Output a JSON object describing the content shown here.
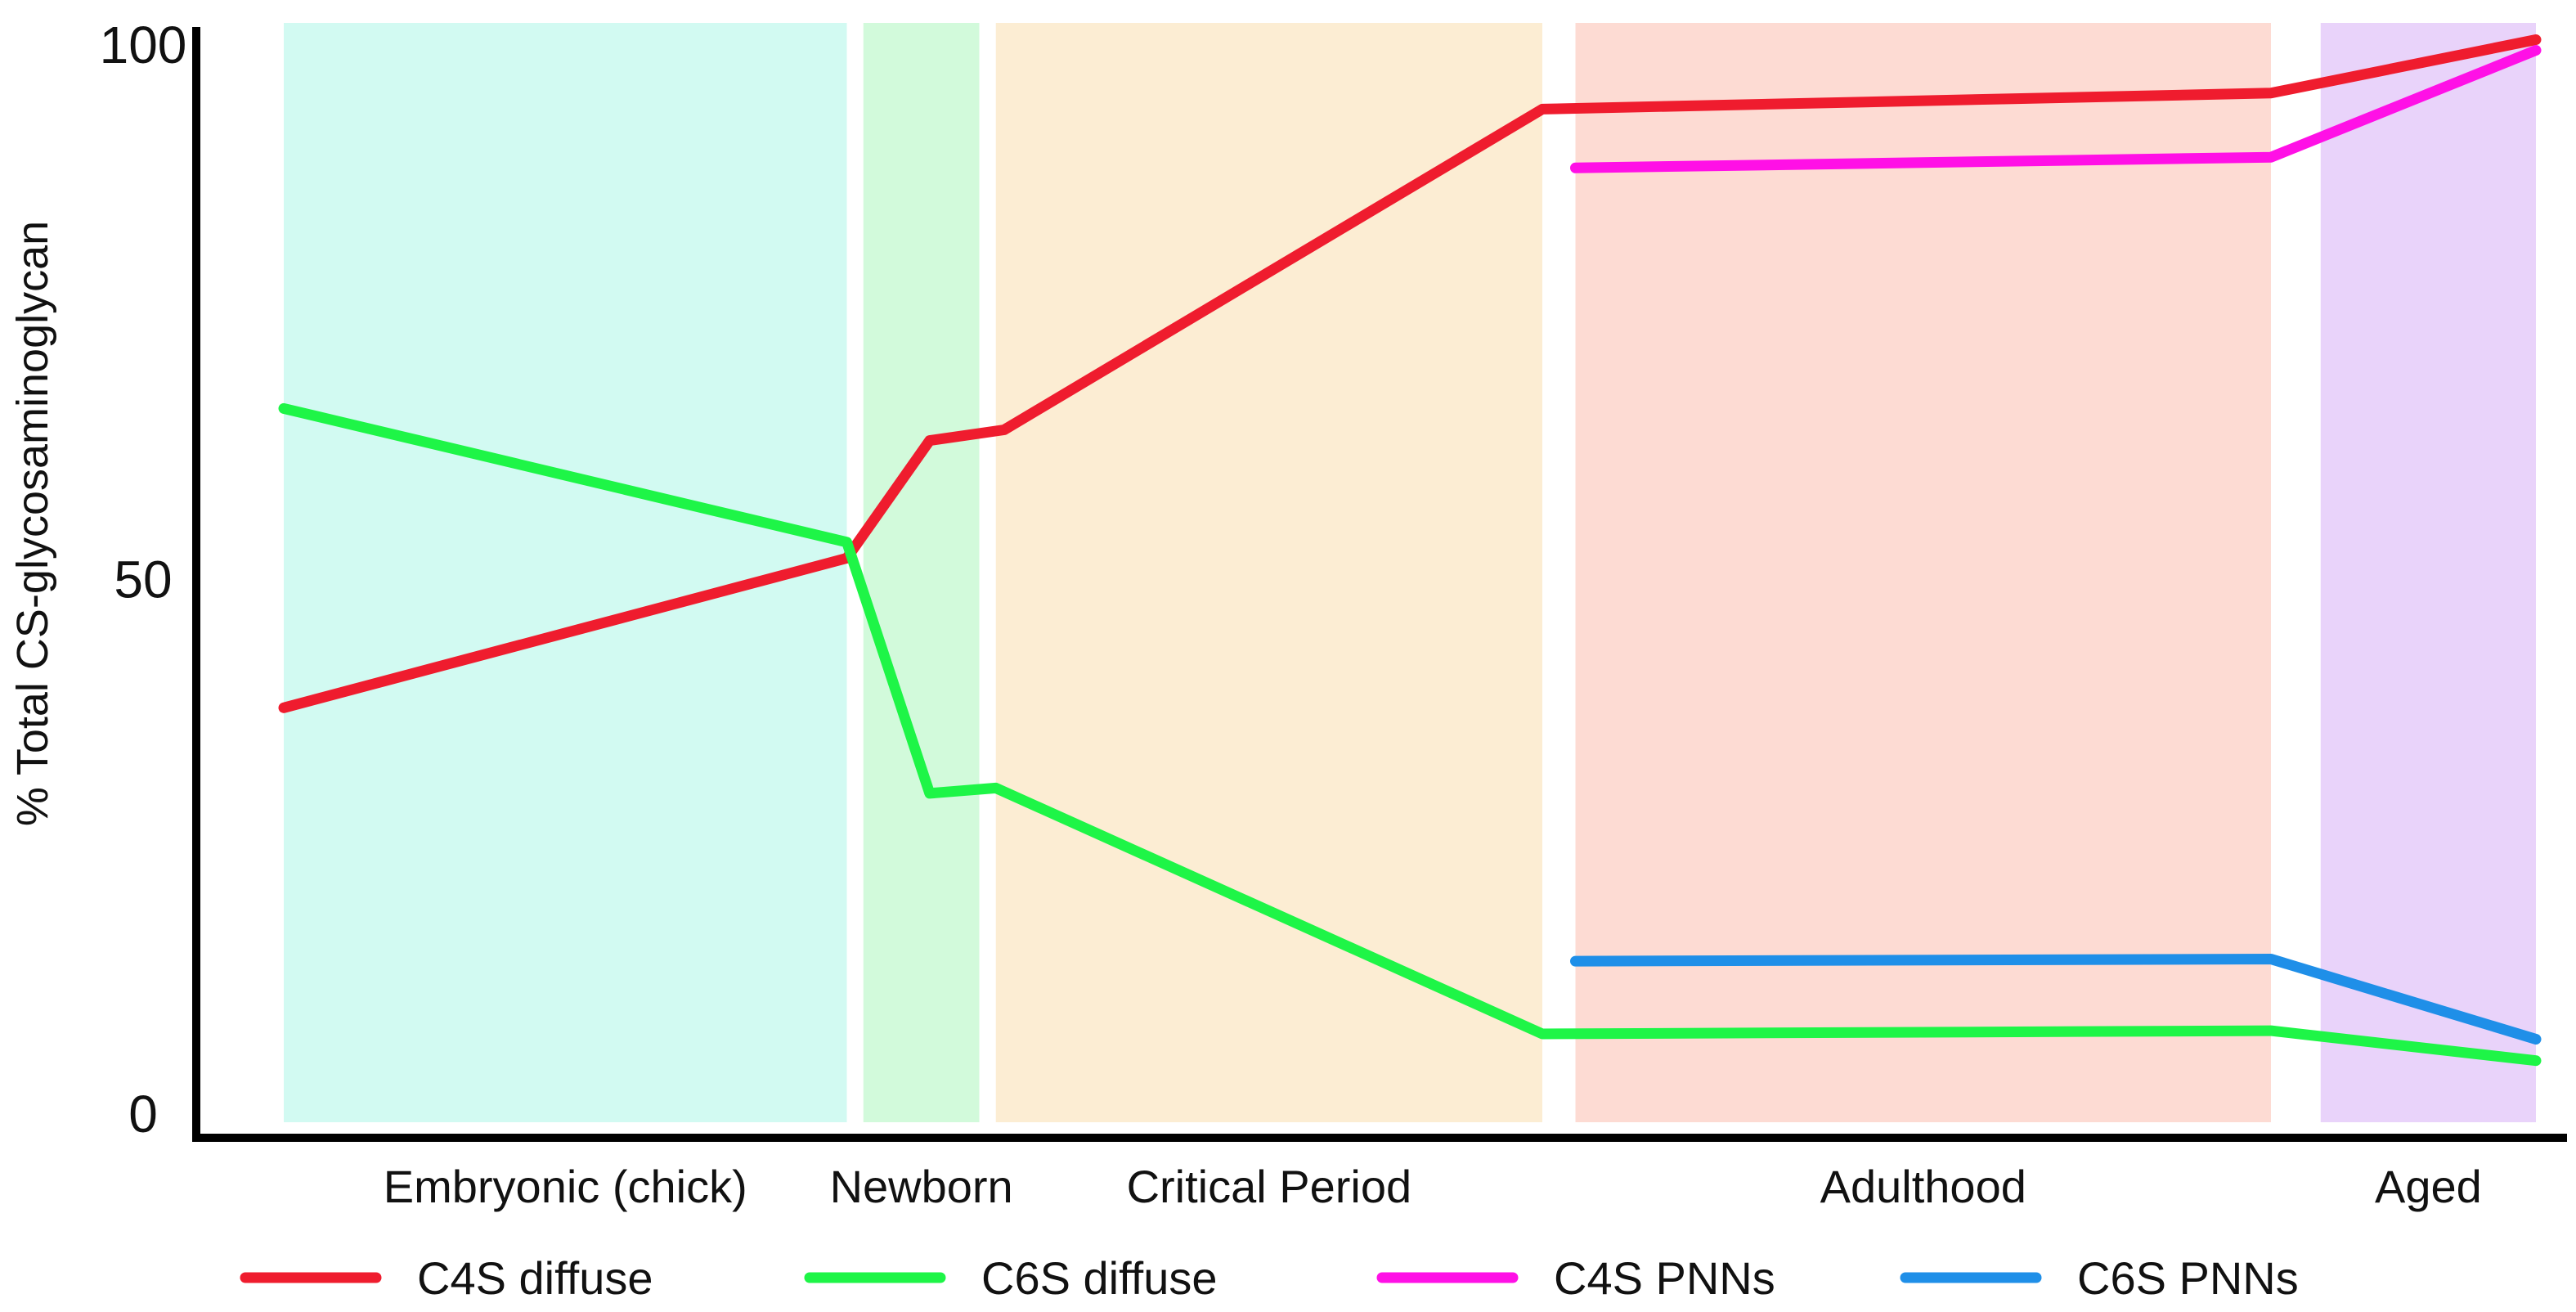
{
  "chart_data": {
    "type": "line",
    "title": "",
    "ylabel": "% Total CS-glycosaminoglycan",
    "xlabel": "",
    "ylim": [
      0,
      100
    ],
    "yticks": [
      {
        "value": 0,
        "label": "0"
      },
      {
        "value": 50,
        "label": "50"
      },
      {
        "value": 100,
        "label": "100"
      }
    ],
    "grid": false,
    "legend_position": "bottom",
    "phases": [
      {
        "name": "Embryonic (chick)",
        "start": 0.0,
        "end": 3.4,
        "color": "#d2faf2"
      },
      {
        "name": "Newborn",
        "start": 3.5,
        "end": 4.2,
        "color": "#d2fadb"
      },
      {
        "name": "Critical Period",
        "start": 4.3,
        "end": 7.6,
        "color": "#fcedd3"
      },
      {
        "name": "Adulthood",
        "start": 7.8,
        "end": 12.0,
        "color": "#fddbd3"
      },
      {
        "name": "Aged",
        "start": 12.3,
        "end": 13.6,
        "color": "#e9d3fa"
      }
    ],
    "series": [
      {
        "name": "C4S diffuse",
        "color": "#ef1c2e",
        "points": [
          [
            0.0,
            38
          ],
          [
            3.4,
            52
          ],
          [
            3.9,
            63
          ],
          [
            4.35,
            64
          ],
          [
            7.6,
            94
          ],
          [
            12.0,
            95.5
          ],
          [
            13.6,
            100.5
          ]
        ]
      },
      {
        "name": "C6S diffuse",
        "color": "#1ef547",
        "points": [
          [
            0.0,
            66
          ],
          [
            3.4,
            53.5
          ],
          [
            3.9,
            30
          ],
          [
            4.3,
            30.5
          ],
          [
            7.6,
            7.5
          ],
          [
            12.0,
            7.8
          ],
          [
            13.6,
            5
          ]
        ]
      },
      {
        "name": "C4S PNNs",
        "color": "#ff10e6",
        "points": [
          [
            7.8,
            88.5
          ],
          [
            12.0,
            89.5
          ],
          [
            13.6,
            99.5
          ]
        ]
      },
      {
        "name": "C6S PNNs",
        "color": "#1f8fe8",
        "points": [
          [
            7.8,
            14.3
          ],
          [
            12.0,
            14.5
          ],
          [
            13.6,
            7
          ]
        ]
      }
    ]
  }
}
